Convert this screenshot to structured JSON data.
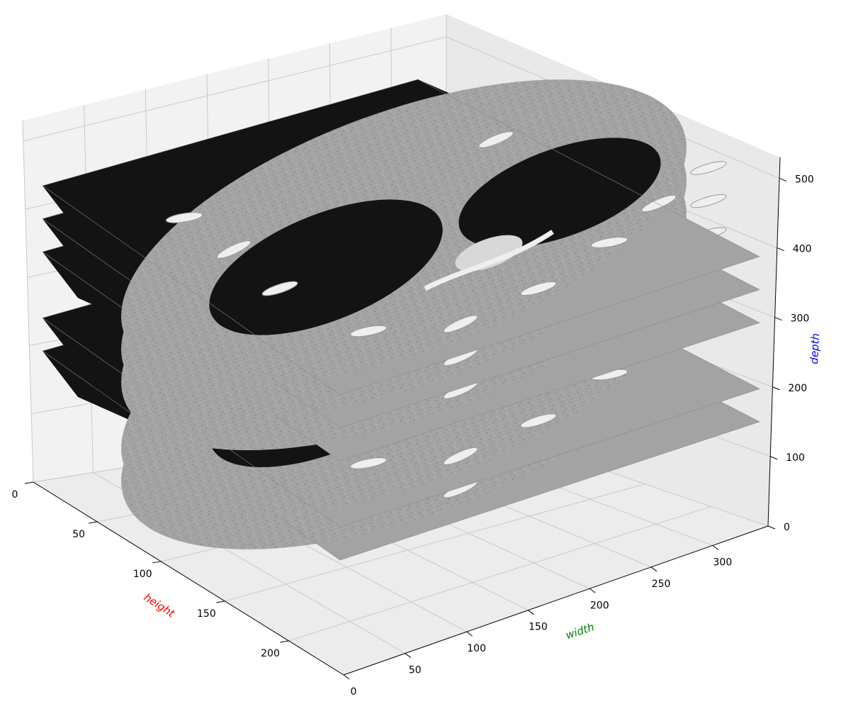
{
  "chart_data": {
    "type": "3d-slices",
    "axes": {
      "x": {
        "label": "height",
        "label_color": "#ff0000",
        "ticks": [
          0,
          50,
          100,
          150,
          200
        ],
        "range": [
          0,
          243
        ]
      },
      "y": {
        "label": "width",
        "label_color": "#008000",
        "ticks": [
          0,
          50,
          100,
          150,
          200,
          250,
          300
        ],
        "range": [
          0,
          345
        ]
      },
      "z": {
        "label": "depth",
        "label_color": "#0000ff",
        "ticks": [
          0,
          100,
          200,
          300,
          400,
          500
        ],
        "range": [
          0,
          530
        ]
      }
    },
    "slices": [
      {
        "depth": 150,
        "description": "axial CT slice"
      },
      {
        "depth": 200,
        "description": "axial CT slice"
      },
      {
        "depth": 300,
        "description": "axial CT slice"
      },
      {
        "depth": 350,
        "description": "axial CT slice"
      },
      {
        "depth": 400,
        "description": "axial CT slice"
      }
    ],
    "grid": true,
    "pane_color": "#f2f2f2",
    "colors": {
      "air": "#131313",
      "tissue": "#a3a3a3",
      "bone": "#efefef",
      "noise": "#7a7a7a"
    }
  }
}
